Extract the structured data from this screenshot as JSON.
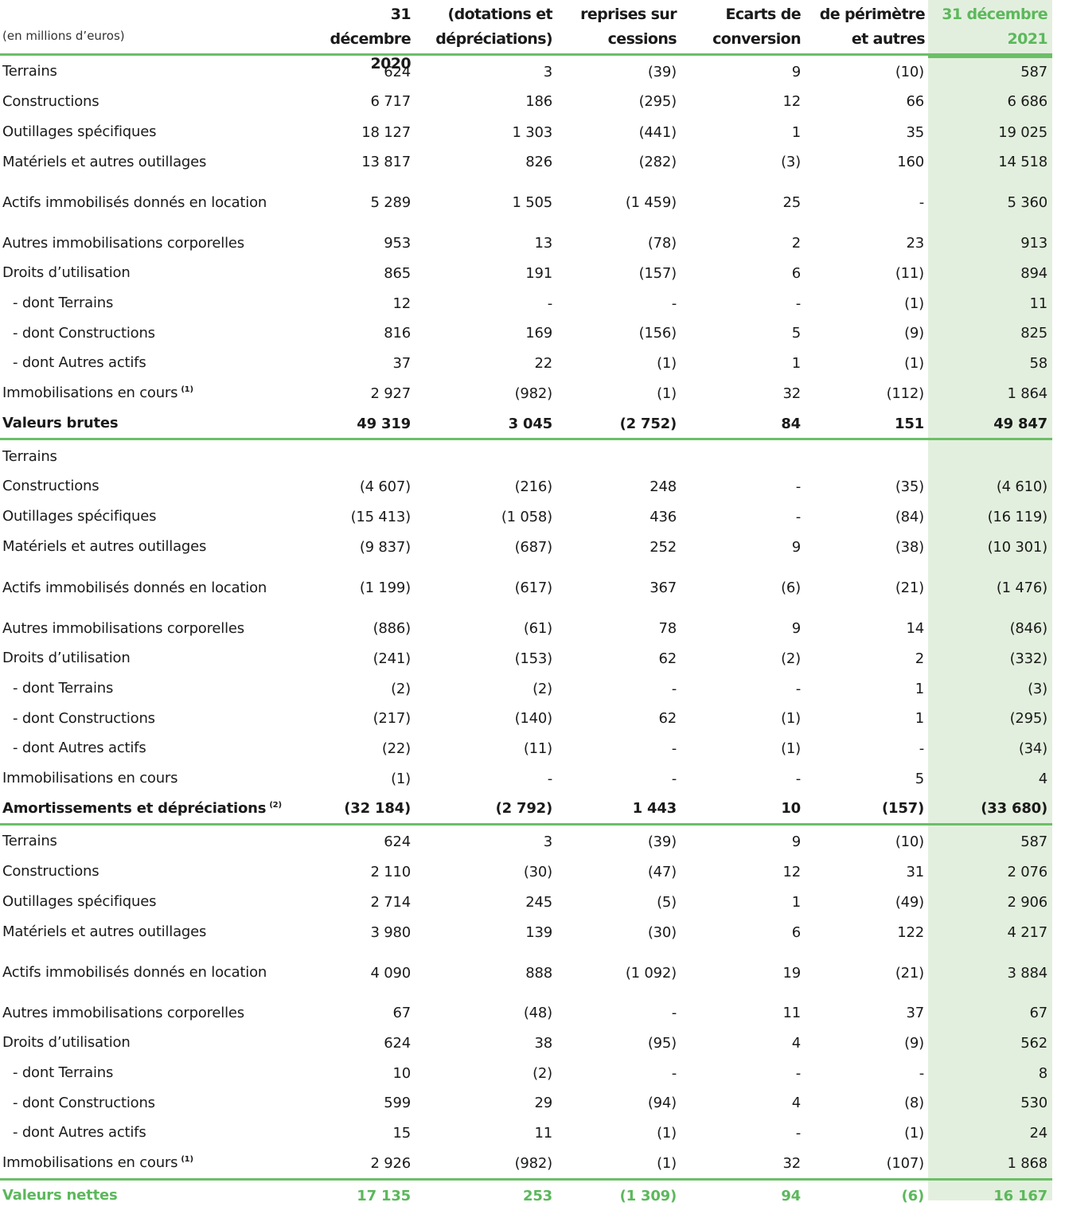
{
  "header": {
    "unit": "(en millions d’euros)",
    "col1": [
      "31 décembre",
      "2020"
    ],
    "col2": [
      "(dotations et",
      "dépréciations)"
    ],
    "col3": [
      "reprises sur",
      "cessions"
    ],
    "col4": [
      "Ecarts de",
      "conversion"
    ],
    "col5": [
      "de périmètre",
      "et autres"
    ],
    "col6": [
      "31 décembre",
      "2021"
    ]
  },
  "sections": [
    {
      "rows": [
        {
          "label": "Terrains",
          "values": [
            "624",
            "3",
            "(39)",
            "9",
            "(10)",
            "587"
          ]
        },
        {
          "label": "Constructions",
          "values": [
            "6 717",
            "186",
            "(295)",
            "12",
            "66",
            "6 686"
          ]
        },
        {
          "label": "Outillages spécifiques",
          "values": [
            "18 127",
            "1 303",
            "(441)",
            "1",
            "35",
            "19 025"
          ]
        },
        {
          "label": "Matériels et autres outillages",
          "values": [
            "13 817",
            "826",
            "(282)",
            "(3)",
            "160",
            "14 518"
          ]
        },
        {
          "label": "Actifs immobilisés donnés en location",
          "values": [
            "5 289",
            "1 505",
            "(1 459)",
            "25",
            "-",
            "5 360"
          ]
        },
        {
          "label": "Autres immobilisations corporelles",
          "values": [
            "953",
            "13",
            "(78)",
            "2",
            "23",
            "913"
          ]
        },
        {
          "label": "Droits d’utilisation",
          "values": [
            "865",
            "191",
            "(157)",
            "6",
            "(11)",
            "894"
          ]
        },
        {
          "label": "- dont Terrains",
          "values": [
            "12",
            "-",
            "-",
            "-",
            "(1)",
            "11"
          ]
        },
        {
          "label": "- dont Constructions",
          "values": [
            "816",
            "169",
            "(156)",
            "5",
            "(9)",
            "825"
          ]
        },
        {
          "label": "- dont Autres actifs",
          "values": [
            "37",
            "22",
            "(1)",
            "1",
            "(1)",
            "58"
          ]
        },
        {
          "label": "Immobilisations en cours",
          "note": "(1)",
          "values": [
            "2 927",
            "(982)",
            "(1)",
            "32",
            "(112)",
            "1 864"
          ]
        }
      ],
      "total": {
        "label": "Valeurs brutes",
        "values": [
          "49 319",
          "3 045",
          "(2 752)",
          "84",
          "151",
          "49 847"
        ]
      }
    },
    {
      "rows": [
        {
          "label": "Terrains",
          "values": [
            "",
            "",
            "",
            "",
            "",
            ""
          ]
        },
        {
          "label": "Constructions",
          "values": [
            "(4 607)",
            "(216)",
            "248",
            "-",
            "(35)",
            "(4 610)"
          ]
        },
        {
          "label": "Outillages spécifiques",
          "values": [
            "(15 413)",
            "(1 058)",
            "436",
            "-",
            "(84)",
            "(16 119)"
          ]
        },
        {
          "label": "Matériels et autres outillages",
          "values": [
            "(9 837)",
            "(687)",
            "252",
            "9",
            "(38)",
            "(10 301)"
          ]
        },
        {
          "label": "Actifs immobilisés donnés en location",
          "values": [
            "(1 199)",
            "(617)",
            "367",
            "(6)",
            "(21)",
            "(1 476)"
          ]
        },
        {
          "label": "Autres immobilisations corporelles",
          "values": [
            "(886)",
            "(61)",
            "78",
            "9",
            "14",
            "(846)"
          ]
        },
        {
          "label": "Droits d’utilisation",
          "values": [
            "(241)",
            "(153)",
            "62",
            "(2)",
            "2",
            "(332)"
          ]
        },
        {
          "label": "- dont Terrains",
          "values": [
            "(2)",
            "(2)",
            "-",
            "-",
            "1",
            "(3)"
          ]
        },
        {
          "label": "- dont Constructions",
          "values": [
            "(217)",
            "(140)",
            "62",
            "(1)",
            "1",
            "(295)"
          ]
        },
        {
          "label": "- dont Autres actifs",
          "values": [
            "(22)",
            "(11)",
            "-",
            "(1)",
            "-",
            "(34)"
          ]
        },
        {
          "label": "Immobilisations en cours",
          "values": [
            "(1)",
            "-",
            "-",
            "-",
            "5",
            "4"
          ]
        }
      ],
      "total": {
        "label": "Amortissements et dépréciations",
        "note": "(2)",
        "values": [
          "(32 184)",
          "(2 792)",
          "1 443",
          "10",
          "(157)",
          "(33 680)"
        ]
      }
    },
    {
      "rows": [
        {
          "label": "Terrains",
          "values": [
            "624",
            "3",
            "(39)",
            "9",
            "(10)",
            "587"
          ]
        },
        {
          "label": "Constructions",
          "values": [
            "2 110",
            "(30)",
            "(47)",
            "12",
            "31",
            "2 076"
          ]
        },
        {
          "label": "Outillages spécifiques",
          "values": [
            "2 714",
            "245",
            "(5)",
            "1",
            "(49)",
            "2 906"
          ]
        },
        {
          "label": "Matériels et autres outillages",
          "values": [
            "3 980",
            "139",
            "(30)",
            "6",
            "122",
            "4 217"
          ]
        },
        {
          "label": "Actifs immobilisés donnés en location",
          "values": [
            "4 090",
            "888",
            "(1 092)",
            "19",
            "(21)",
            "3 884"
          ]
        },
        {
          "label": "Autres immobilisations corporelles",
          "values": [
            "67",
            "(48)",
            "-",
            "11",
            "37",
            "67"
          ]
        },
        {
          "label": "Droits d’utilisation",
          "values": [
            "624",
            "38",
            "(95)",
            "4",
            "(9)",
            "562"
          ]
        },
        {
          "label": "- dont Terrains",
          "values": [
            "10",
            "(2)",
            "-",
            "-",
            "-",
            "8"
          ]
        },
        {
          "label": "- dont Constructions",
          "values": [
            "599",
            "29",
            "(94)",
            "4",
            "(8)",
            "530"
          ]
        },
        {
          "label": "- dont Autres actifs",
          "values": [
            "15",
            "11",
            "(1)",
            "-",
            "(1)",
            "24"
          ]
        },
        {
          "label": "Immobilisations en cours",
          "note": "(1)",
          "values": [
            "2 926",
            "(982)",
            "(1)",
            "32",
            "(107)",
            "1 868"
          ]
        }
      ],
      "total": {
        "label": "Valeurs nettes",
        "values": [
          "17 135",
          "253",
          "(1 309)",
          "94",
          "(6)",
          "16 167"
        ]
      }
    }
  ],
  "colors": {
    "accent": "#6bbf67",
    "highlight": "#e3efde",
    "net_text": "#5cb85c"
  }
}
